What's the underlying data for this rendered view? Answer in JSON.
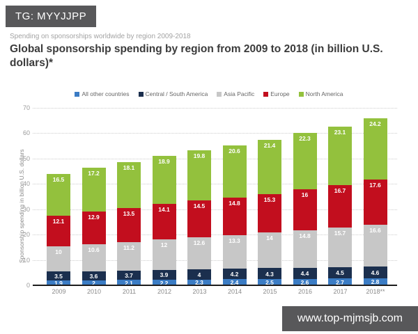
{
  "header": {
    "badge": "TG: MYYJJPP"
  },
  "page": {
    "subtitle": "Spending on sponsorships worldwide by region 2009-2018",
    "title": "Global sponsorship spending by region from 2009 to 2018 (in billion U.S. dollars)*"
  },
  "footer": {
    "url": "www.top-mjmsjb.com"
  },
  "colors": {
    "badge_bg": "#58585a",
    "footer_bg": "#58585a",
    "axis_line": "#1c1c1c",
    "gridline": "#cccccc"
  },
  "chart_data": {
    "type": "bar",
    "stacked": true,
    "title": "Global sponsorship spending by region from 2009 to 2018 (in billion U.S. dollars)*",
    "xlabel": "",
    "ylabel": "Sponsorship spending in billion U.S. dollars",
    "ylim": [
      0,
      70
    ],
    "ytick_step": 10,
    "grid": "dotted-horizontal",
    "legend_position": "top",
    "categories": [
      "2009",
      "2010",
      "2011",
      "2012",
      "2013",
      "2014",
      "2015",
      "2016",
      "2017",
      "2018**"
    ],
    "series": [
      {
        "name": "All other countries",
        "color": "#3b7cc4",
        "values": [
          1.9,
          2,
          2.1,
          2.2,
          2.3,
          2.4,
          2.5,
          2.6,
          2.7,
          2.8
        ]
      },
      {
        "name": "Central / South America",
        "color": "#1b2f4e",
        "values": [
          3.5,
          3.6,
          3.7,
          3.9,
          4,
          4.2,
          4.3,
          4.4,
          4.5,
          4.6
        ]
      },
      {
        "name": "Asia Pacific",
        "color": "#c7c7c7",
        "values": [
          10,
          10.6,
          11.2,
          12,
          12.6,
          13.3,
          14,
          14.8,
          15.7,
          16.6
        ]
      },
      {
        "name": "Europe",
        "color": "#c20e1e",
        "values": [
          12.1,
          12.9,
          13.5,
          14.1,
          14.5,
          14.8,
          15.3,
          16,
          16.7,
          17.6
        ]
      },
      {
        "name": "North America",
        "color": "#93c13d",
        "values": [
          16.5,
          17.2,
          18.1,
          18.9,
          19.8,
          20.6,
          21.4,
          22.3,
          23.1,
          24.2
        ]
      }
    ]
  }
}
